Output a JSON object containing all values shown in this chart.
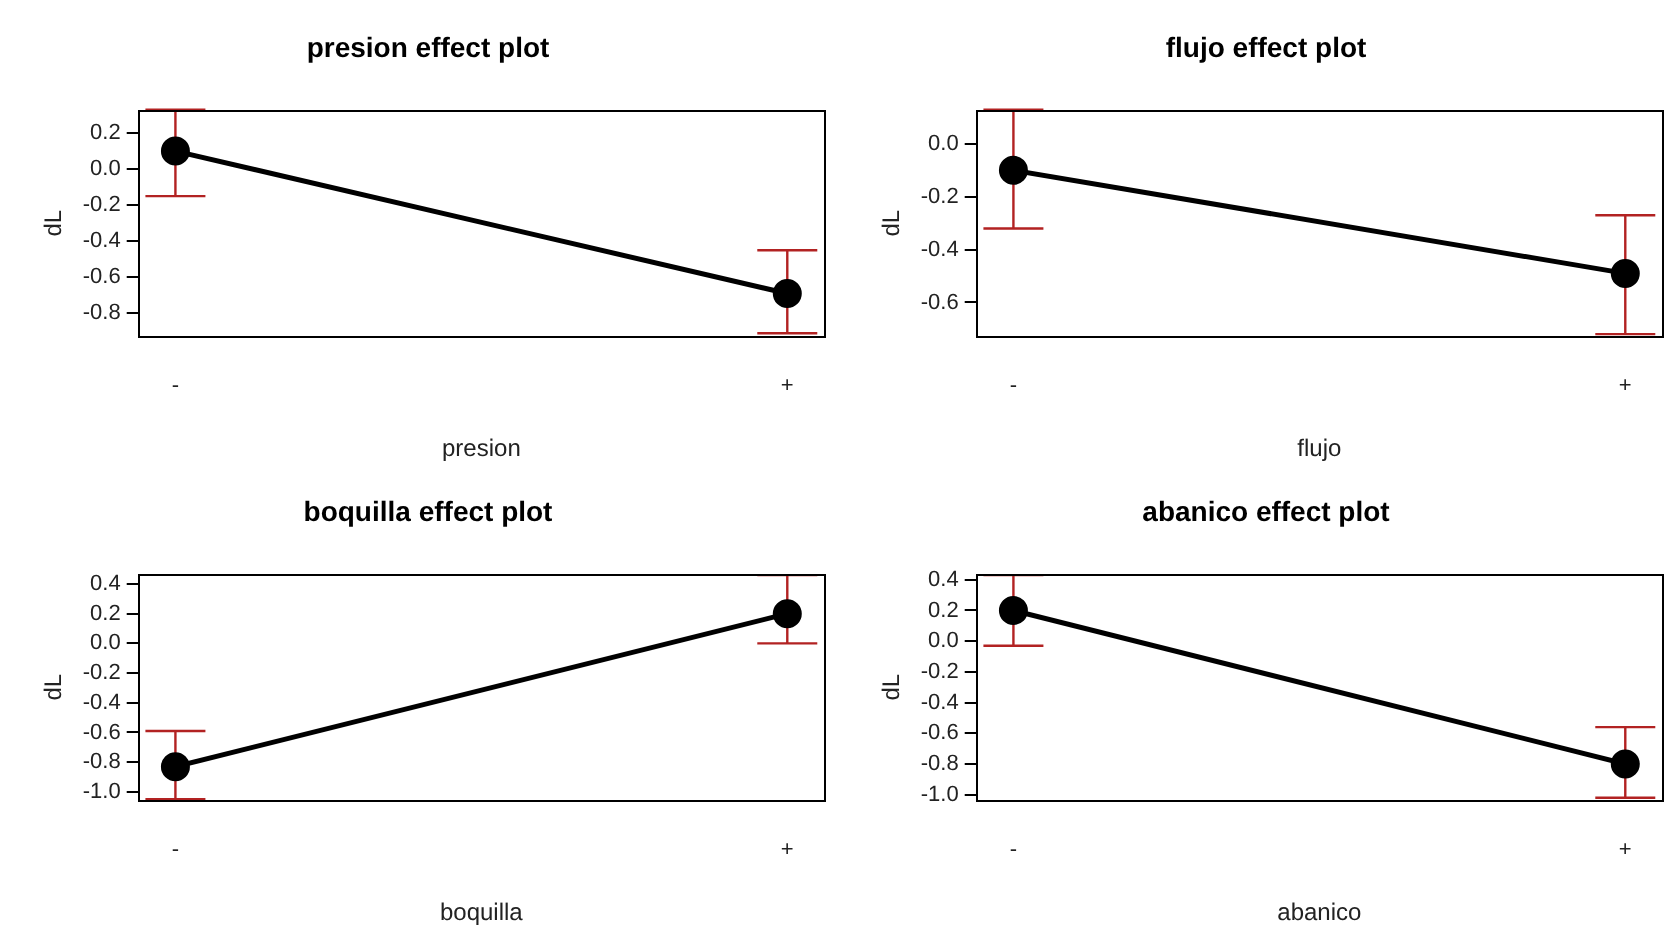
{
  "chart_data": [
    {
      "type": "line",
      "title": "presion effect plot",
      "xlabel": "presion",
      "ylabel": "dL",
      "categories": [
        "-",
        "+"
      ],
      "ylim": [
        -0.93,
        0.33
      ],
      "yticks": [
        {
          "value": 0.2,
          "label": "0.2"
        },
        {
          "value": 0,
          "label": "0.0"
        },
        {
          "value": -0.2,
          "label": "-0.2"
        },
        {
          "value": -0.4,
          "label": "-0.4"
        },
        {
          "value": -0.6,
          "label": "-0.6"
        },
        {
          "value": -0.8,
          "label": "-0.8"
        }
      ],
      "grid": false,
      "legend": false,
      "marker": "circle",
      "line_style": "solid",
      "series": [
        {
          "color": "#000000",
          "values": [
            0.1,
            -0.69
          ],
          "errors": [
            [
              -0.15,
              0.33
            ],
            [
              -0.91,
              -0.45
            ]
          ]
        }
      ]
    },
    {
      "type": "line",
      "title": "flujo effect plot",
      "xlabel": "flujo",
      "ylabel": "dL",
      "categories": [
        "-",
        "+"
      ],
      "ylim": [
        -0.73,
        0.13
      ],
      "yticks": [
        {
          "value": 0,
          "label": "0.0"
        },
        {
          "value": -0.2,
          "label": "-0.2"
        },
        {
          "value": -0.4,
          "label": "-0.4"
        },
        {
          "value": -0.6,
          "label": "-0.6"
        }
      ],
      "grid": false,
      "legend": false,
      "marker": "circle",
      "line_style": "solid",
      "series": [
        {
          "color": "#000000",
          "values": [
            -0.1,
            -0.49
          ],
          "errors": [
            [
              -0.32,
              0.13
            ],
            [
              -0.72,
              -0.27
            ]
          ]
        }
      ]
    },
    {
      "type": "line",
      "title": "boquilla effect plot",
      "xlabel": "boquilla",
      "ylabel": "dL",
      "categories": [
        "-",
        "+"
      ],
      "ylim": [
        -1.06,
        0.47
      ],
      "yticks": [
        {
          "value": 0.4,
          "label": "0.4"
        },
        {
          "value": 0.2,
          "label": "0.2"
        },
        {
          "value": 0,
          "label": "0.0"
        },
        {
          "value": -0.2,
          "label": "-0.2"
        },
        {
          "value": -0.4,
          "label": "-0.4"
        },
        {
          "value": -0.6,
          "label": "-0.6"
        },
        {
          "value": -0.8,
          "label": "-0.8"
        },
        {
          "value": -1,
          "label": "-1.0"
        }
      ],
      "grid": false,
      "legend": false,
      "marker": "circle",
      "line_style": "solid",
      "series": [
        {
          "color": "#000000",
          "values": [
            -0.83,
            0.2
          ],
          "errors": [
            [
              -1.05,
              -0.59
            ],
            [
              0.0,
              0.46
            ]
          ]
        }
      ]
    },
    {
      "type": "line",
      "title": "abanico effect plot",
      "xlabel": "abanico",
      "ylabel": "dL",
      "categories": [
        "-",
        "+"
      ],
      "ylim": [
        -1.04,
        0.44
      ],
      "yticks": [
        {
          "value": 0.4,
          "label": "0.4"
        },
        {
          "value": 0.2,
          "label": "0.2"
        },
        {
          "value": 0,
          "label": "0.0"
        },
        {
          "value": -0.2,
          "label": "-0.2"
        },
        {
          "value": -0.4,
          "label": "-0.4"
        },
        {
          "value": -0.6,
          "label": "-0.6"
        },
        {
          "value": -0.8,
          "label": "-0.8"
        },
        {
          "value": -1,
          "label": "-1.0"
        }
      ],
      "grid": false,
      "legend": false,
      "marker": "circle",
      "line_style": "solid",
      "series": [
        {
          "color": "#000000",
          "values": [
            0.2,
            -0.8
          ],
          "errors": [
            [
              -0.03,
              0.43
            ],
            [
              -1.02,
              -0.56
            ]
          ]
        }
      ]
    }
  ]
}
